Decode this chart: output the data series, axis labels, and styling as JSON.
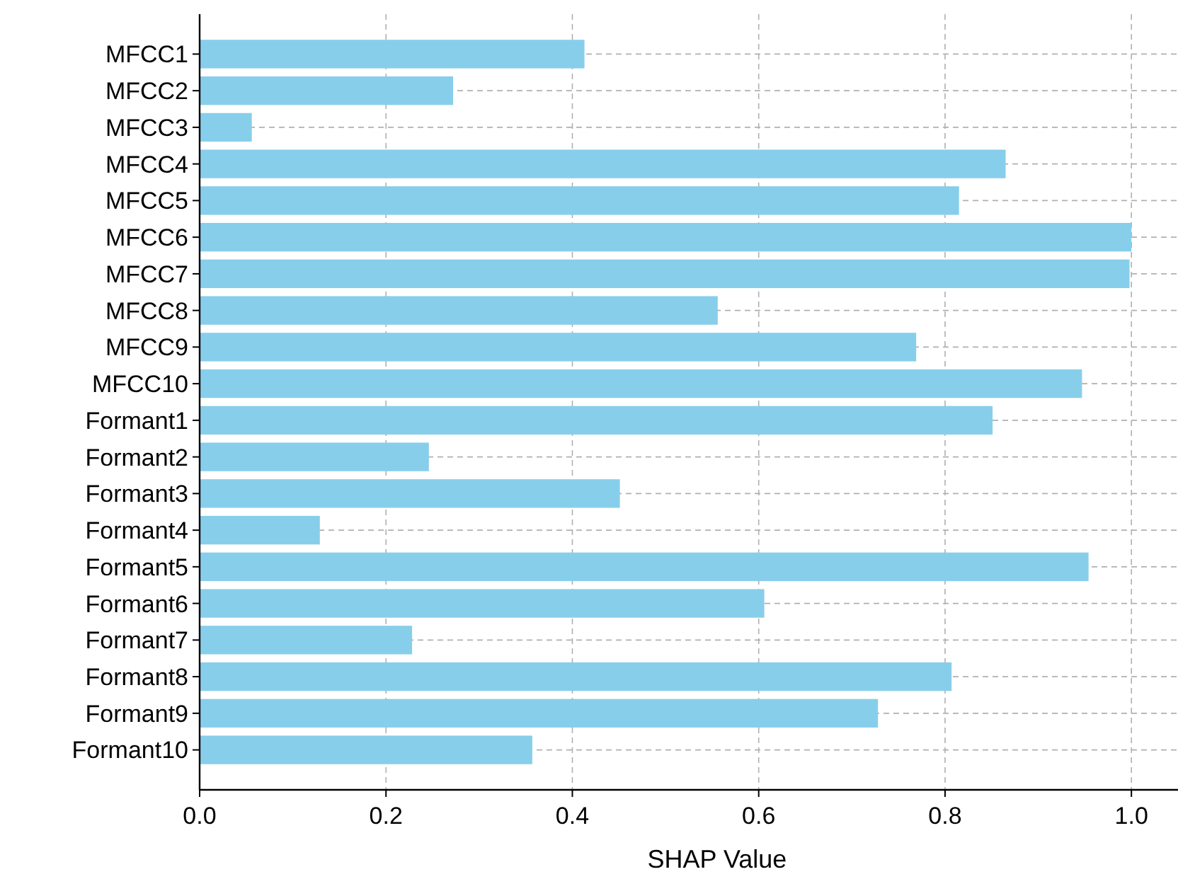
{
  "chart_data": {
    "type": "bar",
    "orientation": "horizontal",
    "xlabel": "SHAP Value",
    "categories": [
      "MFCC1",
      "MFCC2",
      "MFCC3",
      "MFCC4",
      "MFCC5",
      "MFCC6",
      "MFCC7",
      "MFCC8",
      "MFCC9",
      "MFCC10",
      "Formant1",
      "Formant2",
      "Formant3",
      "Formant4",
      "Formant5",
      "Formant6",
      "Formant7",
      "Formant8",
      "Formant9",
      "Formant10"
    ],
    "values": [
      0.413,
      0.272,
      0.056,
      0.865,
      0.815,
      1.0,
      0.998,
      0.556,
      0.769,
      0.947,
      0.851,
      0.246,
      0.451,
      0.129,
      0.954,
      0.606,
      0.228,
      0.807,
      0.728,
      0.357
    ],
    "color": "#87ceeb",
    "xlim": [
      0,
      1.05
    ],
    "xticks": [
      {
        "value": 0,
        "label": "0.0"
      },
      0.2,
      0.4,
      0.6,
      0.8,
      {
        "value": 1,
        "label": "1.0"
      }
    ],
    "grid": true
  }
}
